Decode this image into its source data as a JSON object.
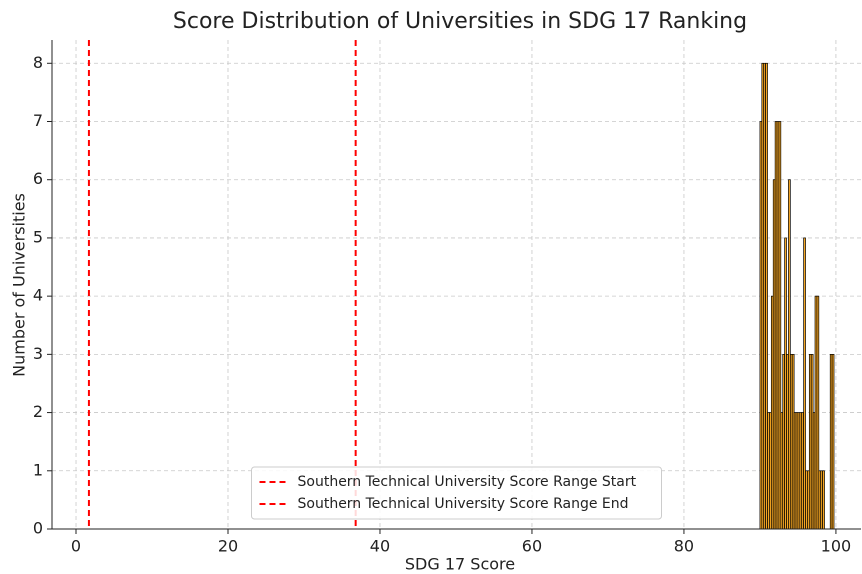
{
  "chart_data": {
    "type": "histogram",
    "title": "Score Distribution of Universities in SDG 17 Ranking",
    "xlabel": "SDG 17 Score",
    "ylabel": "Number of Universities",
    "bins": [
      90,
      90.25,
      90.5,
      90.75,
      91,
      91.25,
      91.5,
      91.75,
      92,
      92.25,
      92.5,
      92.75,
      93,
      93.25,
      93.5,
      93.75,
      94,
      94.25,
      94.5,
      94.75,
      95,
      95.25,
      95.5,
      95.75,
      96,
      96.25,
      96.5,
      96.75,
      97,
      97.25,
      97.5,
      97.75,
      98,
      98.25,
      98.5,
      98.75,
      99,
      99.25,
      99.5,
      99.75,
      100
    ],
    "values": [
      7,
      8,
      8,
      8,
      2,
      2,
      4,
      6,
      7,
      7,
      7,
      2,
      3,
      5,
      3,
      6,
      3,
      3,
      2,
      2,
      2,
      2,
      2,
      5,
      1,
      1,
      3,
      3,
      2,
      4,
      4,
      1,
      1,
      1,
      0,
      0,
      0,
      3,
      3,
      0
    ],
    "color": "#f5a623",
    "edgecolor": "#000000",
    "vlines": [
      {
        "name": "Southern Technical University Score Range Start",
        "color": "#ff0000",
        "value": 1.7
      },
      {
        "name": "Southern Technical University Score Range End",
        "color": "#ff0000",
        "value": 36.8
      }
    ],
    "xlim": [
      -3.16,
      103.3
    ],
    "xticks": [
      0,
      20,
      40,
      60,
      80,
      100
    ],
    "ylim": [
      0,
      8.4
    ],
    "yticks": [
      0,
      1,
      2,
      3,
      4,
      5,
      6,
      7,
      8
    ],
    "grid": true,
    "legend": "lower center"
  }
}
